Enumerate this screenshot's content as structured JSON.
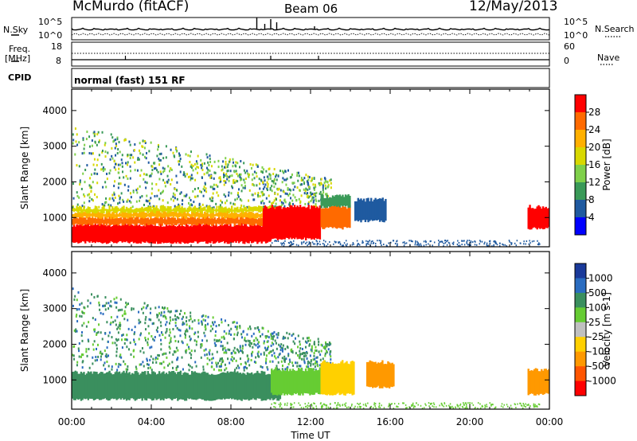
{
  "header": {
    "station": "McMurdo (fitACF)",
    "beam": "Beam 06",
    "date": "12/May/2013"
  },
  "top_panels": {
    "nsky_label": "N.Sky",
    "nsearch_label": "N.Search",
    "nsky_ticks": [
      "10^5",
      "10^0"
    ],
    "nsearch_ticks": [
      "10^5",
      "10^0"
    ],
    "freq_label": "Freq.",
    "freq_unit": "[MHz]",
    "freq_ticks": [
      "18",
      "8"
    ],
    "nave_label": "Nave",
    "nave_ticks": [
      "60",
      "0"
    ],
    "cpid_label": "CPID",
    "cpid_text": "normal (fast) 151 RF"
  },
  "x_axis": {
    "label": "Time UT",
    "ticks": [
      "00:00",
      "04:00",
      "08:00",
      "12:00",
      "16:00",
      "20:00",
      "00:00"
    ],
    "hours": [
      0,
      4,
      8,
      12,
      16,
      20,
      24
    ]
  },
  "chart_data": [
    {
      "type": "heatmap",
      "name": "power",
      "ylabel": "Slant Range [km]",
      "yticks": [
        1000,
        2000,
        3000,
        4000
      ],
      "xlim_hours": [
        0,
        24
      ],
      "ylim_km": [
        180,
        4600
      ],
      "colorbar": {
        "label": "Power [dB]",
        "ticks": [
          "28",
          "24",
          "20",
          "16",
          "12",
          "8",
          "4"
        ],
        "colors": [
          "#ff0000",
          "#ff6a00",
          "#ffb000",
          "#d8d800",
          "#7fd04a",
          "#3a9a58",
          "#1f5aa0",
          "#0000ff"
        ]
      },
      "regions": [
        {
          "t0": 0.0,
          "t1": 10.0,
          "r0": 300,
          "r1": 800,
          "c": 0
        },
        {
          "t0": 0.0,
          "t1": 10.5,
          "r0": 800,
          "r1": 1000,
          "c": 1
        },
        {
          "t0": 0.0,
          "t1": 10.5,
          "r0": 1000,
          "r1": 1150,
          "c": 2
        },
        {
          "t0": 0.0,
          "t1": 10.5,
          "r0": 1150,
          "r1": 1280,
          "c": 3
        },
        {
          "t0": 9.6,
          "t1": 12.5,
          "r0": 400,
          "r1": 1300,
          "c": 0
        },
        {
          "t0": 12.5,
          "t1": 14.0,
          "r0": 700,
          "r1": 1300,
          "c": 1
        },
        {
          "t0": 12.5,
          "t1": 14.0,
          "r0": 1300,
          "r1": 1600,
          "c": 5
        },
        {
          "t0": 14.2,
          "t1": 15.8,
          "r0": 900,
          "r1": 1500,
          "c": 6
        },
        {
          "t0": 22.9,
          "t1": 24.0,
          "r0": 700,
          "r1": 1300,
          "c": 0
        }
      ]
    },
    {
      "type": "heatmap",
      "name": "velocity",
      "ylabel": "Slant Range [km]",
      "yticks": [
        1000,
        2000,
        3000,
        4000
      ],
      "xlim_hours": [
        0,
        24
      ],
      "ylim_km": [
        180,
        4600
      ],
      "colorbar": {
        "label": "Velocity [m s-1]",
        "ticks": [
          "1000",
          "500",
          "100",
          "25",
          "-25",
          "-100",
          "-500",
          "-1000"
        ],
        "colors": [
          "#1a3a9a",
          "#2a6cc0",
          "#3a8f5e",
          "#66cc33",
          "#c0c0c0",
          "#ffd000",
          "#ff9900",
          "#ff5500",
          "#ff0000"
        ]
      },
      "regions": [
        {
          "t0": 0.0,
          "t1": 10.5,
          "r0": 450,
          "r1": 1200,
          "c": 2
        },
        {
          "t0": 2.0,
          "t1": 6.5,
          "r0": 600,
          "r1": 1100,
          "c": 2
        },
        {
          "t0": 10.0,
          "t1": 12.5,
          "r0": 600,
          "r1": 1300,
          "c": 3
        },
        {
          "t0": 12.5,
          "t1": 14.2,
          "r0": 600,
          "r1": 1500,
          "c": 5
        },
        {
          "t0": 14.8,
          "t1": 16.2,
          "r0": 800,
          "r1": 1500,
          "c": 6
        },
        {
          "t0": 22.9,
          "t1": 24.0,
          "r0": 600,
          "r1": 1300,
          "c": 6
        }
      ]
    }
  ]
}
